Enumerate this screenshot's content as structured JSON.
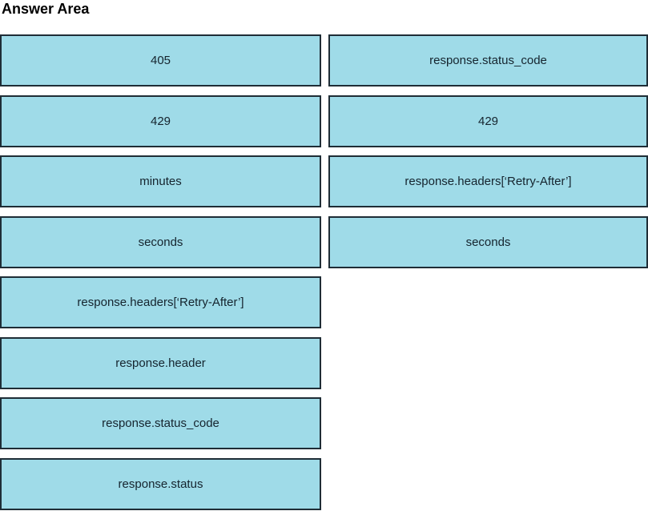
{
  "title": "Answer Area",
  "colors": {
    "box_fill": "#9fdbe8",
    "box_border": "#1f2d36",
    "box_text": "#15242e",
    "title_text": "#000000",
    "background": "#ffffff"
  },
  "left_options": [
    "405",
    "429",
    "minutes",
    "seconds",
    "response.headers[‘Retry-After’]",
    "response.header",
    "response.status_code",
    "response.status"
  ],
  "right_options": [
    "response.status_code",
    "429",
    "response.headers[‘Retry-After’]",
    "seconds"
  ]
}
